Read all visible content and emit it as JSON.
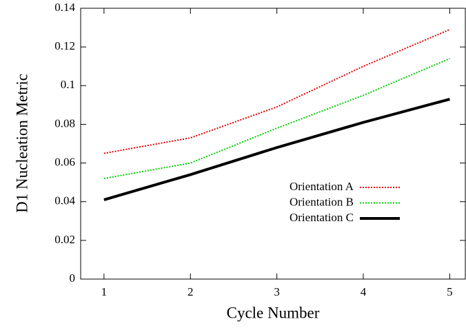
{
  "chart_data": {
    "type": "line",
    "x_label": "Cycle Number",
    "y_label": "D1 Nucleation Metric",
    "x": [
      1,
      2,
      3,
      4,
      5
    ],
    "series": [
      {
        "name": "Orientation A",
        "color": "#e00000",
        "linestyle": "dotted",
        "values": [
          0.065,
          0.073,
          0.089,
          0.11,
          0.129
        ]
      },
      {
        "name": "Orientation B",
        "color": "#00cc00",
        "linestyle": "dotted",
        "values": [
          0.052,
          0.06,
          0.078,
          0.095,
          0.114
        ]
      },
      {
        "name": "Orientation C",
        "color": "#000000",
        "linestyle": "solid",
        "values": [
          0.041,
          0.054,
          0.068,
          0.081,
          0.093
        ]
      }
    ],
    "xlim": [
      0.73,
      5.18
    ],
    "xticks": [
      1,
      2,
      3,
      4,
      5
    ],
    "ylim": [
      0,
      0.14
    ],
    "yticks": [
      0,
      0.02,
      0.04,
      0.06,
      0.08,
      0.1,
      0.12,
      0.14
    ],
    "grid": false,
    "legend": "lower right"
  }
}
